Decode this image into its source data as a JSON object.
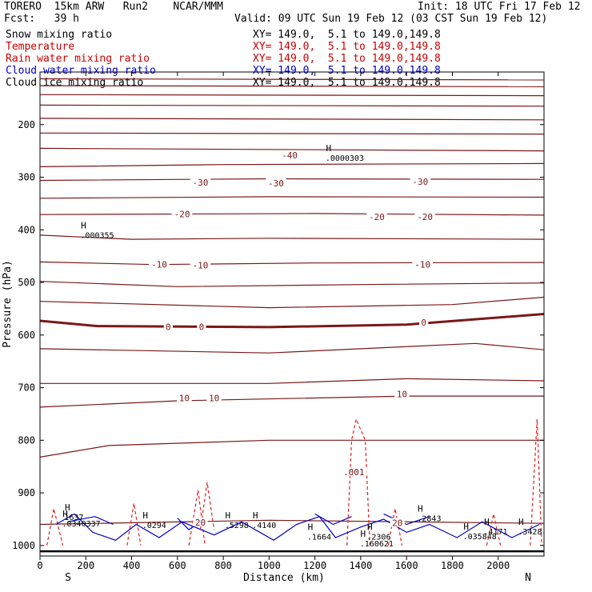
{
  "header": {
    "model": "TORERO  15km ARW   Run2    NCAR/MMM",
    "init": "Init: 18 UTC Fri 17 Feb 12",
    "fcst": "Fcst:   39 h",
    "valid": "Valid: 09 UTC Sun 19 Feb 12 (03 CST Sun 19 Feb 12)"
  },
  "fields": [
    {
      "name": "Snow mixing ratio",
      "xy": "XY= 149.0,  5.1 to 149.0,149.8",
      "color": "#000000"
    },
    {
      "name": "Temperature",
      "xy": "XY= 149.0,  5.1 to 149.0,149.8",
      "color": "#cc0000"
    },
    {
      "name": "Rain water mixing ratio",
      "xy": "XY= 149.0,  5.1 to 149.0,149.8",
      "color": "#cc0000"
    },
    {
      "name": "Cloud water mixing ratio",
      "xy": "XY= 149.0,  5.1 to 149.0,149.8",
      "color": "#0000cc"
    },
    {
      "name": "Cloud ice mixing ratio",
      "xy": "XY= 149.0,  5.1 to 149.0,149.8",
      "color": "#000000"
    }
  ],
  "chart_data": {
    "type": "line",
    "xlabel": "Distance (km)",
    "ylabel": "Pressure (hPa)",
    "xlim": [
      0,
      2200
    ],
    "ylim": [
      1020,
      100
    ],
    "x_ticks": [
      0,
      200,
      400,
      600,
      800,
      1000,
      1200,
      1400,
      1600,
      1800,
      2000
    ],
    "y_ticks": [
      200,
      300,
      400,
      500,
      600,
      700,
      800,
      900,
      1000
    ],
    "end_labels": {
      "left": "S",
      "right": "N"
    },
    "colors": {
      "temperature": "#7a1818",
      "freezing": "#7a1818",
      "rain": "#e02020",
      "cloud_water": "#0000cc",
      "ground": "#000000"
    },
    "temperature_isotherms": [
      {
        "points": [
          [
            0,
            113
          ],
          [
            2200,
            115
          ]
        ]
      },
      {
        "points": [
          [
            0,
            126
          ],
          [
            2200,
            128
          ]
        ]
      },
      {
        "points": [
          [
            0,
            143
          ],
          [
            2200,
            145
          ]
        ]
      },
      {
        "points": [
          [
            0,
            163
          ],
          [
            2200,
            165
          ]
        ]
      },
      {
        "points": [
          [
            0,
            188
          ],
          [
            2200,
            191
          ]
        ]
      },
      {
        "points": [
          [
            0,
            216
          ],
          [
            2200,
            218
          ]
        ]
      },
      {
        "points": [
          [
            0,
            245
          ],
          [
            2200,
            250
          ]
        ]
      },
      {
        "points": [
          [
            0,
            280
          ],
          [
            800,
            276
          ],
          [
            2200,
            274
          ]
        ]
      },
      {
        "points": [
          [
            0,
            306
          ],
          [
            1000,
            303
          ],
          [
            2200,
            304
          ]
        ]
      },
      {
        "points": [
          [
            0,
            340
          ],
          [
            1000,
            337
          ],
          [
            2200,
            338
          ]
        ]
      },
      {
        "points": [
          [
            0,
            371
          ],
          [
            1200,
            369
          ],
          [
            2200,
            372
          ]
        ]
      },
      {
        "points": [
          [
            0,
            410
          ],
          [
            400,
            418
          ],
          [
            1000,
            416
          ],
          [
            2200,
            418
          ]
        ]
      },
      {
        "points": [
          [
            0,
            461
          ],
          [
            500,
            466
          ],
          [
            1200,
            463
          ],
          [
            2200,
            462
          ]
        ]
      },
      {
        "points": [
          [
            0,
            498
          ],
          [
            600,
            508
          ],
          [
            1400,
            504
          ],
          [
            2200,
            501
          ]
        ]
      },
      {
        "points": [
          [
            0,
            536
          ],
          [
            1000,
            548
          ],
          [
            1800,
            542
          ],
          [
            2200,
            528
          ]
        ]
      },
      {
        "points": [
          [
            0,
            573
          ],
          [
            250,
            583
          ],
          [
            1000,
            585
          ],
          [
            1600,
            580
          ],
          [
            2200,
            560
          ]
        ]
      },
      {
        "points": [
          [
            0,
            626
          ],
          [
            1000,
            634
          ],
          [
            1900,
            616
          ],
          [
            2200,
            628
          ]
        ]
      },
      {
        "points": [
          [
            0,
            692
          ],
          [
            1000,
            692
          ],
          [
            1600,
            683
          ],
          [
            2200,
            687
          ]
        ]
      },
      {
        "points": [
          [
            0,
            737
          ],
          [
            600,
            725
          ],
          [
            1600,
            716
          ],
          [
            2200,
            716
          ]
        ]
      },
      {
        "points": [
          [
            0,
            832
          ],
          [
            300,
            810
          ],
          [
            1000,
            800
          ],
          [
            2200,
            800
          ]
        ]
      },
      {
        "points": [
          [
            0,
            960
          ],
          [
            1000,
            952
          ],
          [
            2200,
            958
          ]
        ]
      }
    ],
    "isotherm_labels": [
      {
        "text": "-40",
        "x": 1090,
        "y": 258
      },
      {
        "text": "-30",
        "x": 700,
        "y": 310
      },
      {
        "text": "-30",
        "x": 1030,
        "y": 311
      },
      {
        "text": "-30",
        "x": 1660,
        "y": 308
      },
      {
        "text": "-20",
        "x": 620,
        "y": 370
      },
      {
        "text": "-20",
        "x": 1470,
        "y": 375
      },
      {
        "text": "-20",
        "x": 1680,
        "y": 375
      },
      {
        "text": "-10",
        "x": 520,
        "y": 466
      },
      {
        "text": "-10",
        "x": 700,
        "y": 467
      },
      {
        "text": "-10",
        "x": 1670,
        "y": 466
      },
      {
        "text": "0",
        "x": 560,
        "y": 584
      },
      {
        "text": "0",
        "x": 705,
        "y": 584
      },
      {
        "text": "0",
        "x": 1675,
        "y": 576
      },
      {
        "text": "10",
        "x": 630,
        "y": 720
      },
      {
        "text": "10",
        "x": 760,
        "y": 720
      },
      {
        "text": "10",
        "x": 1580,
        "y": 712
      },
      {
        "text": ".001",
        "x": 1370,
        "y": 860
      },
      {
        "text": "20",
        "x": 700,
        "y": 956
      },
      {
        "text": "20",
        "x": 1560,
        "y": 957
      }
    ],
    "extrema_labels": [
      {
        "mark": "H",
        "text": ".0000303",
        "x": 1260,
        "y": 255
      },
      {
        "mark": "H",
        "text": ".000355",
        "x": 190,
        "y": 402
      },
      {
        "mark": "H",
        "text": ".0340337",
        "x": 110,
        "y": 950
      },
      {
        "mark": "H",
        "text": "1637",
        "x": 120,
        "y": 938
      },
      {
        "mark": "H",
        "text": ".0294",
        "x": 460,
        "y": 953
      },
      {
        "mark": "H",
        "text": ".5298",
        "x": 820,
        "y": 953
      },
      {
        "mark": "H",
        "text": ".4140",
        "x": 940,
        "y": 953
      },
      {
        "mark": "H",
        "text": ".1664",
        "x": 1180,
        "y": 975
      },
      {
        "mark": "H",
        "text": ".2306",
        "x": 1440,
        "y": 975
      },
      {
        "mark": "H",
        "text": ".2843",
        "x": 1660,
        "y": 940
      },
      {
        "mark": "H",
        "text": ".035848",
        "x": 1860,
        "y": 974
      },
      {
        "mark": "H",
        "text": ".4171",
        "x": 1950,
        "y": 965
      },
      {
        "mark": "H",
        "text": ".3428",
        "x": 2100,
        "y": 965
      },
      {
        "mark": "H",
        "text": ".160621",
        "x": 1410,
        "y": 988
      }
    ],
    "freezing_level": {
      "points": [
        [
          0,
          573
        ],
        [
          250,
          583
        ],
        [
          1000,
          585
        ],
        [
          1600,
          580
        ],
        [
          2200,
          560
        ]
      ]
    },
    "rain_contours": [
      {
        "points": [
          [
            30,
            1000
          ],
          [
            60,
            930
          ],
          [
            100,
            1000
          ]
        ]
      },
      {
        "points": [
          [
            380,
            1000
          ],
          [
            410,
            920
          ],
          [
            440,
            1000
          ]
        ]
      },
      {
        "points": [
          [
            650,
            1000
          ],
          [
            690,
            895
          ],
          [
            720,
            1000
          ]
        ]
      },
      {
        "points": [
          [
            700,
            970
          ],
          [
            730,
            880
          ],
          [
            760,
            970
          ]
        ]
      },
      {
        "points": [
          [
            1340,
            1000
          ],
          [
            1360,
            800
          ],
          [
            1380,
            760
          ],
          [
            1420,
            800
          ],
          [
            1440,
            1000
          ]
        ]
      },
      {
        "points": [
          [
            1520,
            1000
          ],
          [
            1550,
            930
          ],
          [
            1580,
            1000
          ]
        ]
      },
      {
        "points": [
          [
            1950,
            1000
          ],
          [
            1980,
            940
          ],
          [
            2010,
            1000
          ]
        ]
      },
      {
        "points": [
          [
            2140,
            1000
          ],
          [
            2170,
            760
          ],
          [
            2190,
            1000
          ]
        ]
      }
    ],
    "cloud_water_contours": [
      {
        "points": [
          [
            70,
            960
          ],
          [
            150,
            940
          ],
          [
            230,
            975
          ],
          [
            330,
            990
          ],
          [
            420,
            960
          ],
          [
            520,
            985
          ],
          [
            620,
            955
          ],
          [
            760,
            980
          ],
          [
            880,
            955
          ],
          [
            1020,
            990
          ],
          [
            1120,
            960
          ],
          [
            1220,
            945
          ],
          [
            1290,
            985
          ],
          [
            1400,
            965
          ],
          [
            1500,
            950
          ],
          [
            1600,
            975
          ],
          [
            1700,
            960
          ],
          [
            1820,
            985
          ],
          [
            1930,
            955
          ],
          [
            2060,
            985
          ],
          [
            2180,
            960
          ]
        ]
      },
      {
        "points": [
          [
            120,
            955
          ],
          [
            240,
            945
          ],
          [
            320,
            960
          ]
        ]
      },
      {
        "points": [
          [
            600,
            948
          ],
          [
            650,
            970
          ],
          [
            700,
            955
          ]
        ]
      },
      {
        "points": [
          [
            1200,
            940
          ],
          [
            1280,
            960
          ],
          [
            1360,
            945
          ]
        ]
      },
      {
        "points": [
          [
            1500,
            940
          ],
          [
            1600,
            960
          ],
          [
            1700,
            945
          ]
        ]
      }
    ],
    "ground_level": 1011
  }
}
